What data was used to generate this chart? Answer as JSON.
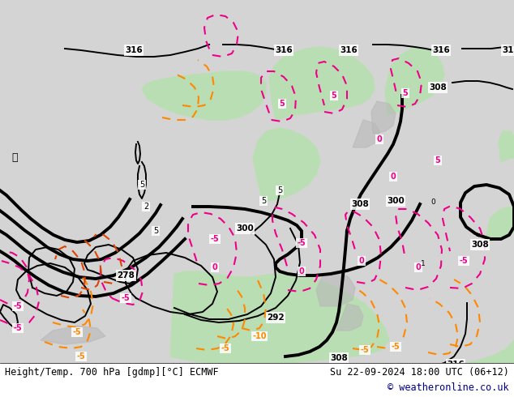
{
  "title_left": "Height/Temp. 700 hPa [gdmp][°C] ECMWF",
  "title_right": "Su 22-09-2024 18:00 UTC (06+12)",
  "copyright": "© weatheronline.co.uk",
  "bg_color": "#d0d0d0",
  "bottom_bar_color": "#ffffff",
  "green_fill": "#b8e0b0",
  "gray_fill": "#c0c0c0",
  "font_color_black": "#000000",
  "font_color_blue": "#00008B",
  "title_fontsize": 8.5,
  "copyright_fontsize": 8.5,
  "black_contour_lw_thick": 2.8,
  "black_contour_lw_thin": 1.4,
  "temp_lw": 1.5
}
